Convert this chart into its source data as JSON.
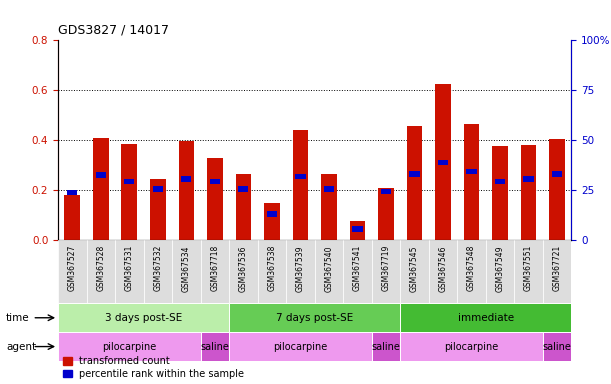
{
  "title": "GDS3827 / 14017",
  "samples": [
    "GSM367527",
    "GSM367528",
    "GSM367531",
    "GSM367532",
    "GSM367534",
    "GSM367718",
    "GSM367536",
    "GSM367538",
    "GSM367539",
    "GSM367540",
    "GSM367541",
    "GSM367719",
    "GSM367545",
    "GSM367546",
    "GSM367548",
    "GSM367549",
    "GSM367551",
    "GSM367721"
  ],
  "red_values": [
    0.18,
    0.41,
    0.385,
    0.245,
    0.395,
    0.33,
    0.265,
    0.148,
    0.44,
    0.265,
    0.075,
    0.21,
    0.455,
    0.625,
    0.465,
    0.375,
    0.38,
    0.405
  ],
  "blue_values": [
    0.19,
    0.26,
    0.235,
    0.205,
    0.245,
    0.235,
    0.205,
    0.105,
    0.255,
    0.205,
    0.045,
    0.195,
    0.265,
    0.31,
    0.275,
    0.235,
    0.245,
    0.265
  ],
  "ylim_left": [
    0,
    0.8
  ],
  "ylim_right": [
    0,
    100
  ],
  "yticks_left": [
    0,
    0.2,
    0.4,
    0.6,
    0.8
  ],
  "yticks_right": [
    0,
    25,
    50,
    75,
    100
  ],
  "red_color": "#cc1100",
  "blue_color": "#0000cc",
  "time_groups": [
    {
      "label": "3 days post-SE",
      "start": 0,
      "end": 5,
      "color": "#bbeeaa"
    },
    {
      "label": "7 days post-SE",
      "start": 6,
      "end": 11,
      "color": "#66cc55"
    },
    {
      "label": "immediate",
      "start": 12,
      "end": 17,
      "color": "#44bb33"
    }
  ],
  "agent_groups": [
    {
      "label": "pilocarpine",
      "start": 0,
      "end": 4,
      "color": "#ee99ee"
    },
    {
      "label": "saline",
      "start": 5,
      "end": 5,
      "color": "#cc55cc"
    },
    {
      "label": "pilocarpine",
      "start": 6,
      "end": 10,
      "color": "#ee99ee"
    },
    {
      "label": "saline",
      "start": 11,
      "end": 11,
      "color": "#cc55cc"
    },
    {
      "label": "pilocarpine",
      "start": 12,
      "end": 16,
      "color": "#ee99ee"
    },
    {
      "label": "saline",
      "start": 17,
      "end": 17,
      "color": "#cc55cc"
    }
  ],
  "legend_red": "transformed count",
  "legend_blue": "percentile rank within the sample",
  "bar_width": 0.55,
  "time_label": "time",
  "agent_label": "agent",
  "bg_color": "#ffffff",
  "tick_label_color_left": "#cc1100",
  "tick_label_color_right": "#0000cc",
  "xticklabel_bg": "#dddddd",
  "blue_bar_height": 0.022
}
